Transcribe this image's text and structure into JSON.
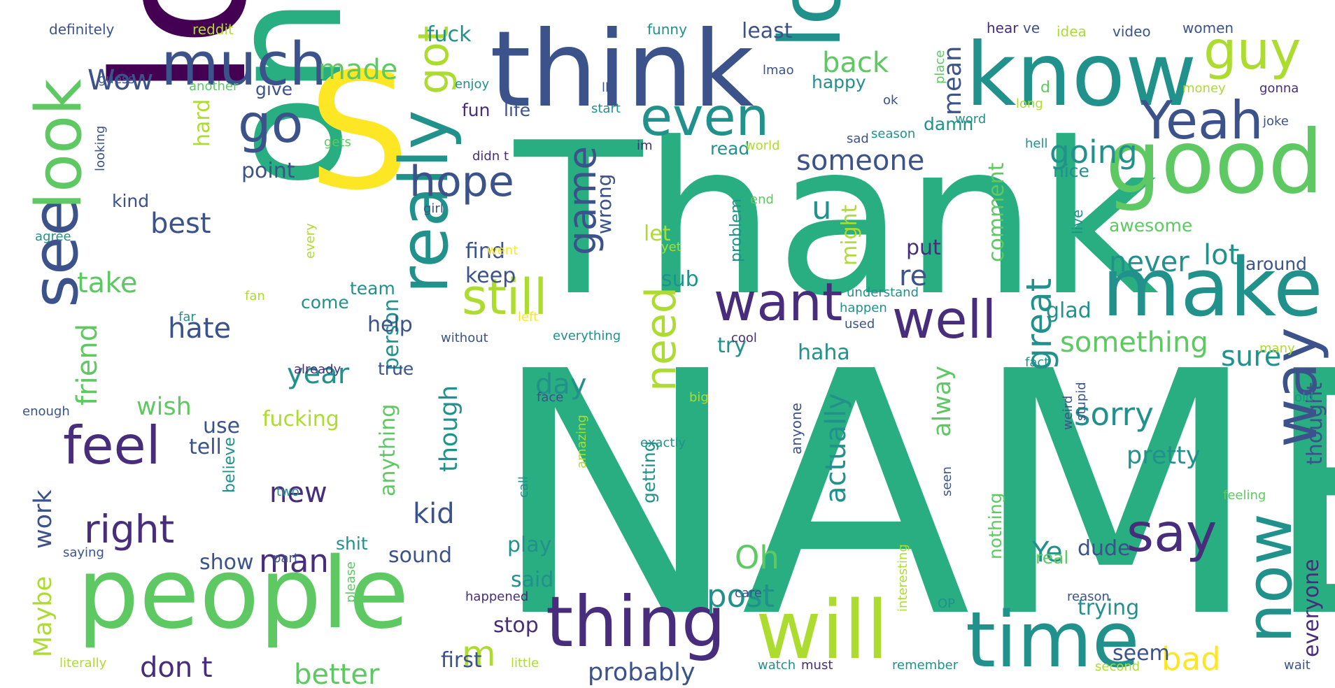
{
  "palette": {
    "dark_purple": "#440154",
    "indigo": "#472d7b",
    "slate_blue": "#3b528b",
    "blue": "#2c728e",
    "teal": "#21918c",
    "green_teal": "#28ae80",
    "green": "#5ec962",
    "lime": "#addc30",
    "yellow": "#fde725",
    "background": "#ffffff"
  },
  "words": {
    "name": "NAME",
    "thank": "Thank",
    "love": "love",
    "one": "one",
    "s": "S",
    "think": "think",
    "people": "people",
    "know": "know",
    "lol": "lol",
    "good": "good",
    "make": "make",
    "will": "will",
    "time": "time",
    "thing": "thing",
    "really": "really",
    "see": "see",
    "look": "look",
    "much": "much",
    "now": "now",
    "way": "way",
    "want": "want",
    "well": "well",
    "still": "still",
    "even": "even",
    "yeah": "Yeah",
    "guy": "guy",
    "feel": "feel",
    "say": "say",
    "go": "go",
    "got": "got",
    "hope": "hope",
    "game": "game",
    "need": "need",
    "right": "right",
    "post": "post",
    "oh": "Oh",
    "m": "m",
    "great": "great",
    "sorry": "sorry",
    "going": "going",
    "someone": "someone",
    "something": "something",
    "actually": "actually",
    "u": "u",
    "wow": "Wow",
    "made": "made",
    "back": "back",
    "mean": "mean",
    "take": "take",
    "best": "best",
    "hate": "hate",
    "man": "man",
    "new": "new",
    "year": "year",
    "day": "day",
    "kid": "kid",
    "don_t": "don t",
    "better": "better",
    "friend": "friend",
    "wish": "wish",
    "work": "work",
    "maybe": "Maybe",
    "though": "though",
    "probably": "probably",
    "lot": "lot",
    "never": "never",
    "sure": "sure",
    "pretty": "pretty",
    "bad": "bad",
    "ye": "Ye",
    "everyone": "everyone",
    "thought": "thought",
    "alway": "alway",
    "haha": "haha",
    "re": "re",
    "might": "might",
    "fuck": "fuck",
    "least": "least",
    "happy": "happy",
    "damn": "damn",
    "read": "read",
    "nice": "nice",
    "fun": "fun",
    "life": "life",
    "point": "point",
    "give": "give",
    "hard": "hard",
    "kind": "kind",
    "find": "find",
    "let": "let",
    "keep": "keep",
    "sub": "sub",
    "person": "person",
    "comment": "comment",
    "glad": "glad",
    "awesome": "awesome",
    "around": "around",
    "put": "put",
    "wrong": "wrong",
    "team": "team",
    "come": "come",
    "help": "help",
    "try": "try",
    "true": "true",
    "anything": "anything",
    "use": "use",
    "tell": "tell",
    "fucking": "fucking",
    "show": "show",
    "shit": "shit",
    "play": "play",
    "said": "said",
    "sound": "sound",
    "first": "first",
    "stop": "stop",
    "dude": "dude",
    "seem": "seem",
    "trying": "trying",
    "getting": "getting",
    "real": "real",
    "nothing": "nothing",
    "believe": "believe",
    "definitely": "definitely",
    "reddit": "reddit",
    "funny": "funny",
    "hear": "hear",
    "ve": "ve",
    "idea": "idea",
    "video": "video",
    "women": "women",
    "guess": "guess",
    "another": "another",
    "ll": "ll",
    "lmao": "lmao",
    "place": "place",
    "money": "money",
    "gonna": "gonna",
    "enjoy": "enjoy",
    "start": "start",
    "ok": "ok",
    "d": "d",
    "long": "long",
    "joke": "joke",
    "looking": "looking",
    "gets": "gets",
    "didn_t": "didn t",
    "im": "im",
    "world": "world",
    "sad": "sad",
    "season": "season",
    "word": "word",
    "hell": "hell",
    "girl": "girl",
    "end": "end",
    "live": "live",
    "agree": "agree",
    "every": "every",
    "went": "went",
    "yet": "yet",
    "problem": "problem",
    "fan": "fan",
    "far": "far",
    "left": "left",
    "understand": "understand",
    "happen": "happen",
    "used": "used",
    "without": "without",
    "everything": "everything",
    "cool": "cool",
    "already": "already",
    "anyone": "anyone",
    "fact": "fact",
    "many": "many",
    "enough": "enough",
    "face": "face",
    "amazing": "amazing",
    "big": "big",
    "stupid": "stupid",
    "weird": "weird",
    "old": "old",
    "exactly": "exactly",
    "two": "two",
    "call": "call",
    "seen": "seen",
    "feeling": "feeling",
    "saying": "saying",
    "part": "part",
    "interesting": "interesting",
    "please": "please",
    "care": "care",
    "happened": "happened",
    "op": "OP",
    "reason": "reason",
    "literally": "literally",
    "little": "little",
    "watch": "watch",
    "must": "must",
    "remember": "remember",
    "second": "second",
    "wait": "wait"
  }
}
